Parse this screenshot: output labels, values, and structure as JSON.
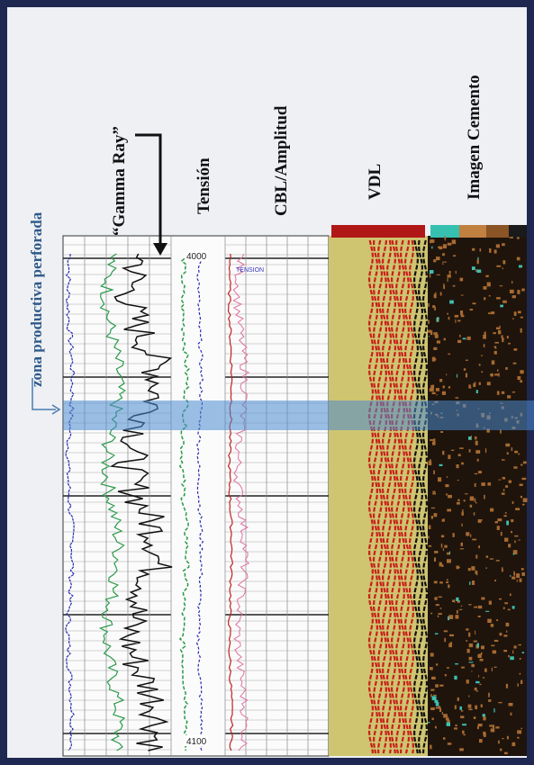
{
  "header": {
    "zone": "zona productiva  perforada",
    "gamma": "“Gamma Ray”",
    "tension": "Tensión",
    "cbl": "CBL/Amplitud",
    "vdl": "VDL",
    "cement": "Imagen Cemento"
  },
  "log": {
    "depth_top": "4000",
    "depth_bottom": "4100",
    "tension_tag": "TENSION"
  }
}
